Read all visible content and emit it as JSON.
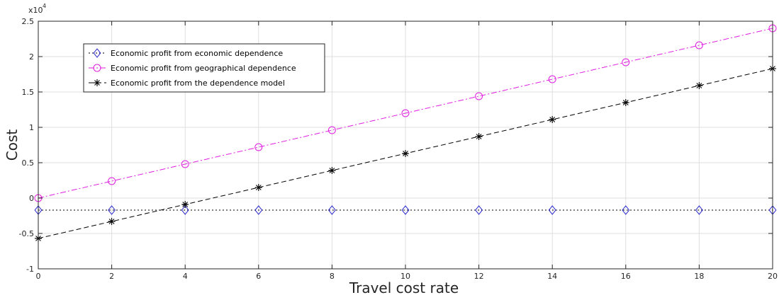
{
  "chart_data": {
    "type": "line",
    "xlabel": "Travel cost rate",
    "ylabel": "Cost",
    "y_exponent_label": "x10",
    "y_exponent_power": "4",
    "xlim": [
      0,
      20
    ],
    "ylim": [
      -1,
      2.5
    ],
    "y_scale_factor": 10000,
    "xticks": [
      0,
      2,
      4,
      6,
      8,
      10,
      12,
      14,
      16,
      18,
      20
    ],
    "yticks": [
      -1,
      -0.5,
      0,
      0.5,
      1,
      1.5,
      2,
      2.5
    ],
    "ytick_labels": [
      "-1",
      "-0.5",
      "0",
      "0.5",
      "1",
      "1.5",
      "2",
      "2.5"
    ],
    "grid": true,
    "legend_position": "top-left",
    "x": [
      0,
      2,
      4,
      6,
      8,
      10,
      12,
      14,
      16,
      18,
      20
    ],
    "series": [
      {
        "name": "Economic profit from economic dependence",
        "values": [
          -0.17,
          -0.17,
          -0.17,
          -0.17,
          -0.17,
          -0.17,
          -0.17,
          -0.17,
          -0.17,
          -0.17,
          -0.17
        ],
        "color": "#1f1fcc",
        "marker": "diamond",
        "line_style": "dotted",
        "line_color": "#000000"
      },
      {
        "name": "Economic profit from geographical dependence",
        "values": [
          0.0,
          0.24,
          0.48,
          0.72,
          0.96,
          1.2,
          1.44,
          1.68,
          1.92,
          2.16,
          2.4
        ],
        "color": "#e01ee0",
        "marker": "circle",
        "line_style": "dashdot",
        "line_color": "#e01ee0"
      },
      {
        "name": "Economic profit from the dependence model",
        "values": [
          -0.57,
          -0.33,
          -0.09,
          0.15,
          0.39,
          0.63,
          0.87,
          1.11,
          1.35,
          1.59,
          1.83
        ],
        "color": "#000000",
        "marker": "asterisk",
        "line_style": "dashed",
        "line_color": "#000000"
      }
    ]
  }
}
